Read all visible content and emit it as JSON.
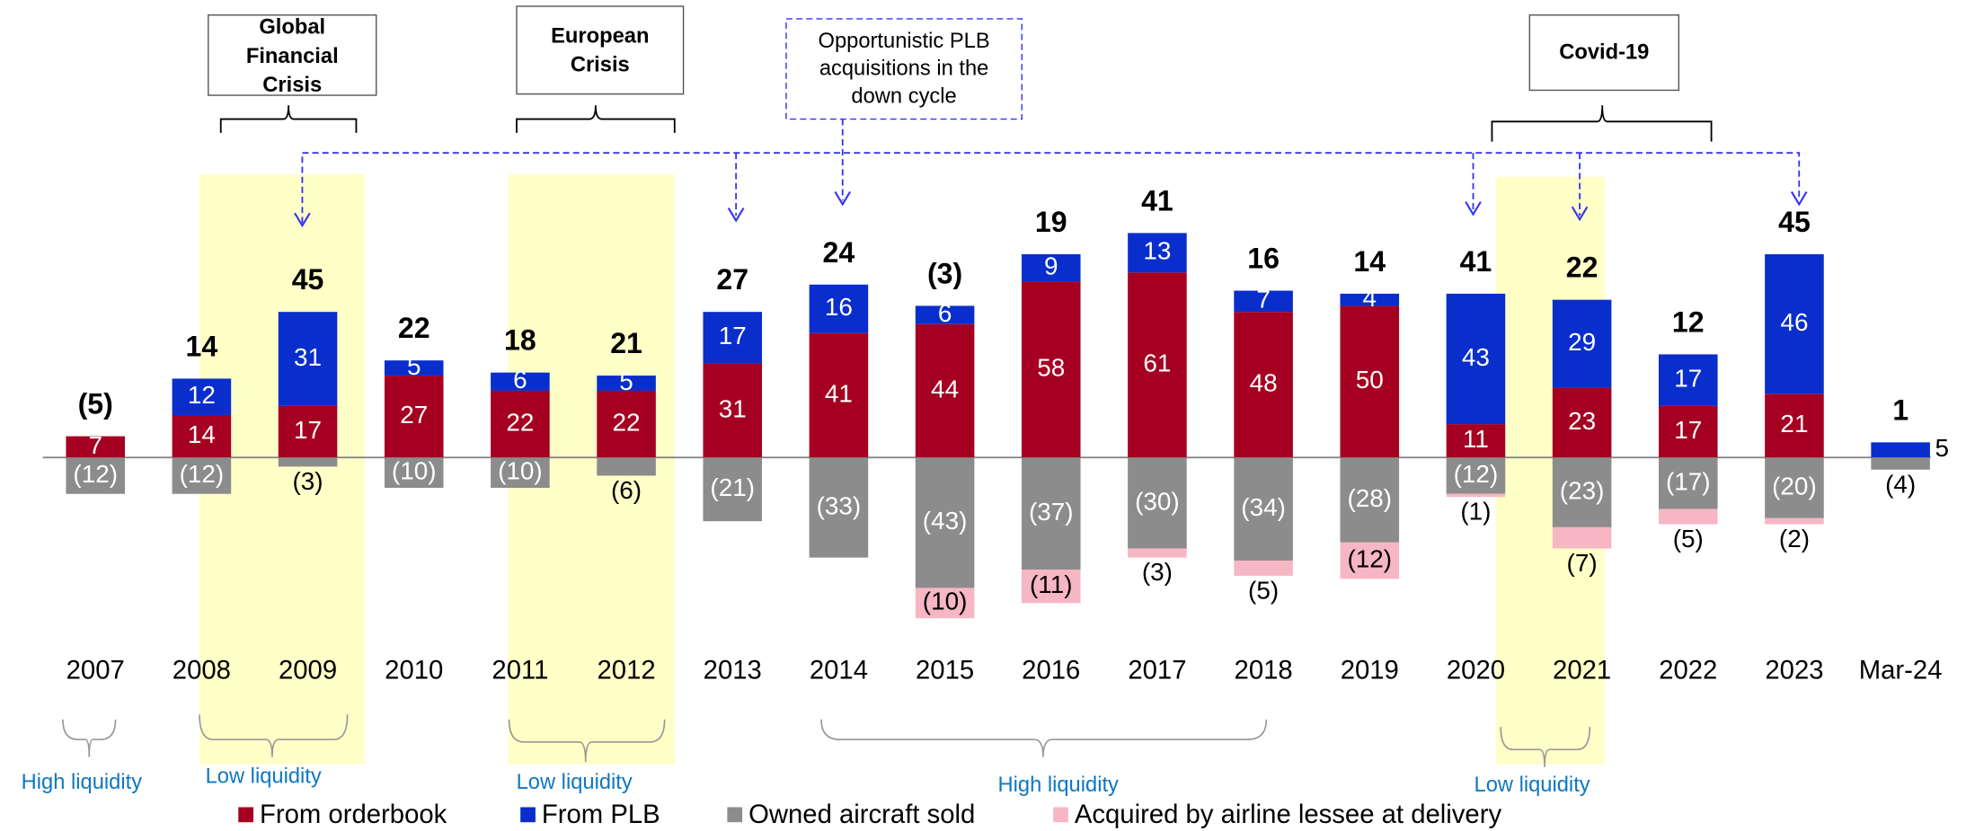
{
  "chart_data": {
    "type": "bar",
    "categories": [
      "2007",
      "2008",
      "2009",
      "2010",
      "2011",
      "2012",
      "2013",
      "2014",
      "2015",
      "2016",
      "2017",
      "2018",
      "2019",
      "2020",
      "2021",
      "2022",
      "2023",
      "Mar-24"
    ],
    "series": [
      {
        "name": "From orderbook",
        "color": "#a50021",
        "values": [
          7,
          14,
          17,
          27,
          22,
          22,
          31,
          41,
          44,
          58,
          61,
          48,
          50,
          11,
          23,
          17,
          21,
          null
        ]
      },
      {
        "name": "From PLB",
        "color": "#0a2ecc",
        "values": [
          null,
          12,
          31,
          5,
          6,
          5,
          17,
          16,
          6,
          9,
          13,
          7,
          4,
          43,
          29,
          17,
          46,
          5
        ]
      },
      {
        "name": "Owned aircraft sold",
        "color": "#8c8c8c",
        "values": [
          -12,
          -12,
          -3,
          -10,
          -10,
          -6,
          -21,
          -33,
          -43,
          -37,
          -30,
          -34,
          -28,
          -12,
          -23,
          -17,
          -20,
          -4
        ],
        "value_labels": [
          "(12)",
          "(12)",
          "(3)",
          "(10)",
          "(10)",
          "(6)",
          "(21)",
          "(33)",
          "(43)",
          "(37)",
          "(30)",
          "(34)",
          "(28)",
          "(12)",
          "(23)",
          "(17)",
          "(20)",
          "(4)"
        ]
      },
      {
        "name": "Acquired by airline lessee at delivery",
        "color": "#f7b6c4",
        "values": [
          null,
          null,
          null,
          null,
          null,
          null,
          null,
          null,
          -10,
          -11,
          -3,
          -5,
          -12,
          -1,
          -7,
          -5,
          -2,
          null
        ],
        "value_labels": [
          null,
          null,
          null,
          null,
          null,
          null,
          null,
          null,
          "(10)",
          "(11)",
          "(3)",
          "(5)",
          "(12)",
          "(1)",
          "(7)",
          "(5)",
          "(2)",
          null
        ]
      }
    ],
    "totals": [
      -5,
      14,
      45,
      22,
      18,
      21,
      27,
      24,
      -3,
      19,
      41,
      16,
      14,
      41,
      22,
      12,
      45,
      1
    ],
    "total_labels": [
      "(5)",
      "14",
      "45",
      "22",
      "18",
      "21",
      "27",
      "24",
      "(3)",
      "19",
      "41",
      "16",
      "14",
      "41",
      "22",
      "12",
      "45",
      "1"
    ],
    "crises": [
      {
        "label": "Global Financial Crisis"
      },
      {
        "label": "European Crisis"
      },
      {
        "label": "Covid-19"
      }
    ],
    "plb_note": "Opportunistic PLB acquisitions in the down cycle",
    "liquidity": [
      "High liquidity",
      "Low liquidity",
      "Low liquidity",
      "High liquidity",
      "Low liquidity"
    ]
  }
}
